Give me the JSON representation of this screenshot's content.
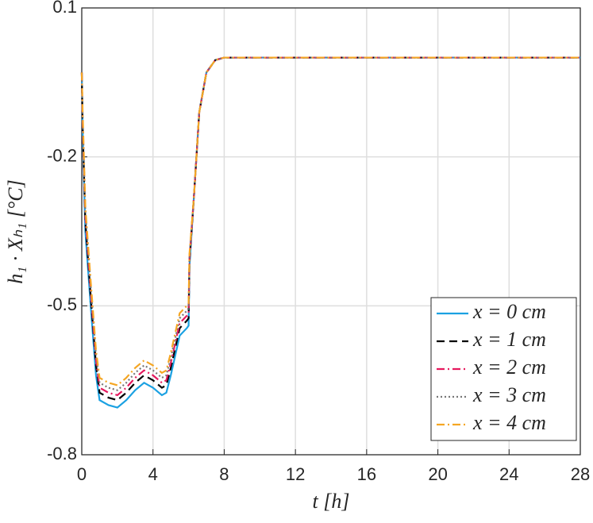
{
  "chart_data": {
    "type": "line",
    "x_label": "t [h]",
    "y_label": "h₁ · Xₕ₁ [°C]",
    "x": [
      0,
      0.05,
      0.2,
      0.5,
      0.8,
      1,
      1.5,
      2,
      2.5,
      3,
      3.5,
      4,
      4.5,
      4.75,
      5,
      5.5,
      5.9,
      6,
      6.05,
      6.3,
      6.6,
      7,
      7.5,
      8,
      28
    ],
    "series": [
      {
        "name": "x = 0 cm",
        "color": "#1ba1e2",
        "linestyle": "solid",
        "values": [
          -0.03,
          -0.15,
          -0.35,
          -0.5,
          -0.64,
          -0.69,
          -0.7,
          -0.705,
          -0.69,
          -0.67,
          -0.655,
          -0.665,
          -0.68,
          -0.675,
          -0.64,
          -0.56,
          -0.545,
          -0.54,
          -0.42,
          -0.28,
          -0.11,
          -0.03,
          -0.005,
          0,
          0
        ]
      },
      {
        "name": "x = 1 cm",
        "color": "#000000",
        "linestyle": "dashed",
        "values": [
          -0.03,
          -0.14,
          -0.33,
          -0.48,
          -0.62,
          -0.675,
          -0.685,
          -0.69,
          -0.675,
          -0.655,
          -0.64,
          -0.65,
          -0.665,
          -0.66,
          -0.625,
          -0.545,
          -0.53,
          -0.525,
          -0.41,
          -0.28,
          -0.11,
          -0.03,
          -0.005,
          0,
          0
        ]
      },
      {
        "name": "x = 2 cm",
        "color": "#e6195e",
        "linestyle": "dashdot",
        "values": [
          -0.03,
          -0.13,
          -0.32,
          -0.47,
          -0.61,
          -0.665,
          -0.675,
          -0.68,
          -0.665,
          -0.645,
          -0.63,
          -0.64,
          -0.655,
          -0.65,
          -0.615,
          -0.535,
          -0.52,
          -0.515,
          -0.405,
          -0.28,
          -0.11,
          -0.03,
          -0.005,
          0,
          0
        ]
      },
      {
        "name": "x = 3 cm",
        "color": "#777777",
        "linestyle": "dotted",
        "values": [
          -0.03,
          -0.12,
          -0.31,
          -0.46,
          -0.6,
          -0.655,
          -0.665,
          -0.67,
          -0.655,
          -0.635,
          -0.62,
          -0.63,
          -0.645,
          -0.64,
          -0.605,
          -0.525,
          -0.51,
          -0.505,
          -0.4,
          -0.28,
          -0.11,
          -0.03,
          -0.005,
          0,
          0
        ]
      },
      {
        "name": "x = 4 cm",
        "color": "#f5a623",
        "linestyle": "dashdot",
        "values": [
          -0.03,
          -0.11,
          -0.3,
          -0.45,
          -0.59,
          -0.645,
          -0.655,
          -0.66,
          -0.645,
          -0.625,
          -0.61,
          -0.62,
          -0.635,
          -0.63,
          -0.595,
          -0.515,
          -0.5,
          -0.495,
          -0.395,
          -0.28,
          -0.11,
          -0.03,
          -0.005,
          0,
          0
        ]
      }
    ],
    "xlim": [
      0,
      28
    ],
    "xticks": [
      0,
      4,
      8,
      12,
      16,
      20,
      24,
      28
    ],
    "ylim": [
      -0.8,
      0.1
    ],
    "yticks": [
      -0.8,
      -0.5,
      -0.2,
      0.1
    ],
    "grid": true,
    "legend": "lower right"
  }
}
